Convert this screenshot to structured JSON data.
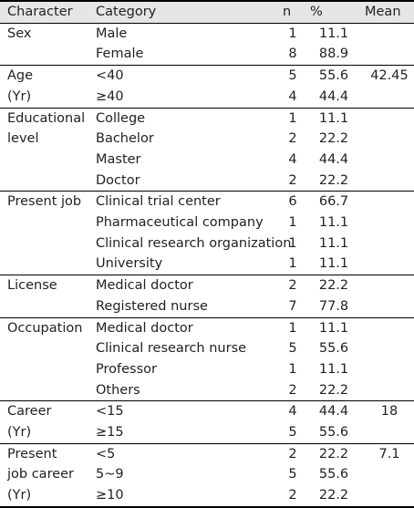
{
  "table": {
    "headers": {
      "character": "Character",
      "category": "Category",
      "n": "n",
      "pct": "%",
      "mean": "Mean"
    },
    "groups": [
      {
        "character_lines": [
          "Sex"
        ],
        "mean": "",
        "rows": [
          {
            "category": "Male",
            "n": "1",
            "pct": "11.1"
          },
          {
            "category": "Female",
            "n": "8",
            "pct": "88.9"
          }
        ]
      },
      {
        "character_lines": [
          "Age",
          "(Yr)"
        ],
        "mean": "42.45",
        "rows": [
          {
            "category": "<40",
            "n": "5",
            "pct": "55.6"
          },
          {
            "category": "≥40",
            "n": "4",
            "pct": "44.4"
          }
        ]
      },
      {
        "character_lines": [
          "Educational",
          "level"
        ],
        "mean": "",
        "rows": [
          {
            "category": "College",
            "n": "1",
            "pct": "11.1"
          },
          {
            "category": "Bachelor",
            "n": "2",
            "pct": "22.2"
          },
          {
            "category": "Master",
            "n": "4",
            "pct": "44.4"
          },
          {
            "category": "Doctor",
            "n": "2",
            "pct": "22.2"
          }
        ]
      },
      {
        "character_lines": [
          "Present job"
        ],
        "mean": "",
        "rows": [
          {
            "category": "Clinical trial center",
            "n": "6",
            "pct": "66.7"
          },
          {
            "category": "Pharmaceutical company",
            "n": "1",
            "pct": "11.1"
          },
          {
            "category": "Clinical research organization",
            "n": "1",
            "pct": "11.1"
          },
          {
            "category": "University",
            "n": "1",
            "pct": "11.1"
          }
        ]
      },
      {
        "character_lines": [
          "License"
        ],
        "mean": "",
        "rows": [
          {
            "category": "Medical doctor",
            "n": "2",
            "pct": "22.2"
          },
          {
            "category": "Registered nurse",
            "n": "7",
            "pct": "77.8"
          }
        ]
      },
      {
        "character_lines": [
          "Occupation"
        ],
        "mean": "",
        "rows": [
          {
            "category": "Medical doctor",
            "n": "1",
            "pct": "11.1"
          },
          {
            "category": "Clinical research nurse",
            "n": "5",
            "pct": "55.6"
          },
          {
            "category": "Professor",
            "n": "1",
            "pct": "11.1"
          },
          {
            "category": "Others",
            "n": "2",
            "pct": "22.2"
          }
        ]
      },
      {
        "character_lines": [
          "Career",
          "(Yr)"
        ],
        "mean": "18",
        "rows": [
          {
            "category": "<15",
            "n": "4",
            "pct": "44.4"
          },
          {
            "category": "≥15",
            "n": "5",
            "pct": "55.6"
          }
        ]
      },
      {
        "character_lines": [
          "Present",
          "job career",
          "(Yr)"
        ],
        "mean": "7.1",
        "rows": [
          {
            "category": "<5",
            "n": "2",
            "pct": "22.2"
          },
          {
            "category": "5~9",
            "n": "5",
            "pct": "55.6"
          },
          {
            "category": "≥10",
            "n": "2",
            "pct": "22.2"
          }
        ]
      }
    ]
  }
}
